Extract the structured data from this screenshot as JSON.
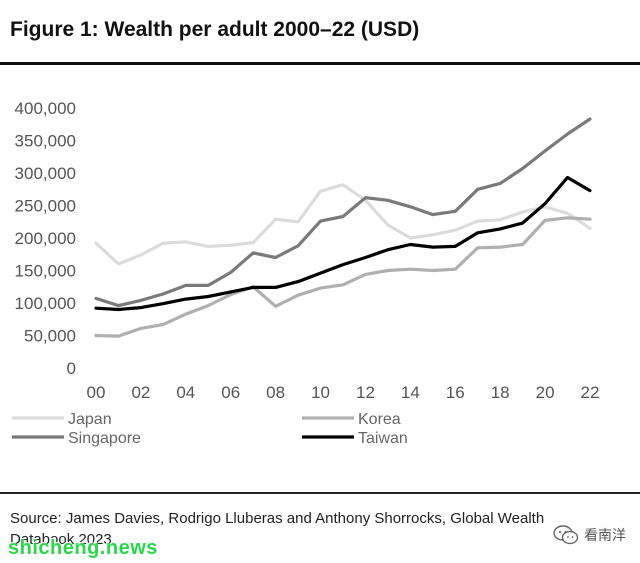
{
  "figure": {
    "title": "Figure 1: Wealth per adult 2000–22 (USD)",
    "source": "Source: James Davies, Rodrigo Lluberas and Anthony Shorrocks, Global Wealth Databook 2023"
  },
  "watermarks": {
    "site": "shicheng.news",
    "account": "看南洋",
    "account_icon": "wechat-icon"
  },
  "chart_data": {
    "type": "line",
    "title": "Figure 1: Wealth per adult 2000–22 (USD)",
    "xlabel": "",
    "ylabel": "",
    "x": [
      2000,
      2001,
      2002,
      2003,
      2004,
      2005,
      2006,
      2007,
      2008,
      2009,
      2010,
      2011,
      2012,
      2013,
      2014,
      2015,
      2016,
      2017,
      2018,
      2019,
      2020,
      2021,
      2022
    ],
    "x_tick_labels": [
      "00",
      "02",
      "04",
      "06",
      "08",
      "10",
      "12",
      "14",
      "16",
      "18",
      "20",
      "22"
    ],
    "y_ticks": [
      0,
      50000,
      100000,
      150000,
      200000,
      250000,
      300000,
      350000,
      400000
    ],
    "y_tick_labels": [
      "0",
      "50,000",
      "100,000",
      "150,000",
      "200,000",
      "250,000",
      "300,000",
      "350,000",
      "400,000"
    ],
    "ylim": [
      0,
      400000
    ],
    "grid": false,
    "legend_position": "bottom",
    "series": [
      {
        "name": "Japan",
        "color": "#dcdcdc",
        "values": [
          192000,
          160000,
          174000,
          192000,
          194000,
          187000,
          189000,
          193000,
          229000,
          225000,
          272000,
          282000,
          258000,
          220000,
          200000,
          205000,
          212000,
          226000,
          228000,
          240000,
          248000,
          238000,
          215000
        ]
      },
      {
        "name": "Korea",
        "color": "#b0b0b0",
        "values": [
          50000,
          49000,
          61000,
          67000,
          83000,
          96000,
          113000,
          125000,
          95000,
          112000,
          123000,
          128000,
          144000,
          150000,
          152000,
          150000,
          152000,
          185000,
          186000,
          190000,
          227000,
          231000,
          229000
        ]
      },
      {
        "name": "Singapore",
        "color": "#7a7a7a",
        "values": [
          107000,
          96000,
          104000,
          114000,
          127000,
          127000,
          147000,
          177000,
          170000,
          188000,
          226000,
          233000,
          262000,
          258000,
          248000,
          236000,
          241000,
          275000,
          284000,
          307000,
          334000,
          360000,
          383000
        ]
      },
      {
        "name": "Taiwan",
        "color": "#000000",
        "values": [
          92000,
          90000,
          93000,
          99000,
          106000,
          110000,
          117000,
          124000,
          124000,
          133000,
          146000,
          159000,
          170000,
          182000,
          190000,
          186000,
          187000,
          208000,
          214000,
          223000,
          253000,
          293000,
          273000
        ]
      }
    ]
  }
}
